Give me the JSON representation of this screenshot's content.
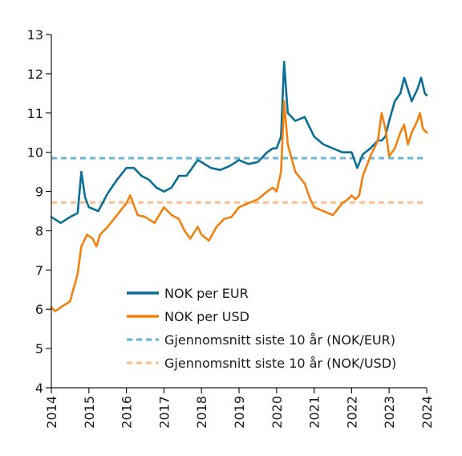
{
  "chart_data": {
    "type": "line",
    "title": "",
    "xlabel": "",
    "ylabel": "",
    "xlim": [
      2014,
      2024
    ],
    "ylim": [
      4,
      13
    ],
    "x_ticks": [
      "2014",
      "2015",
      "2016",
      "2017",
      "2018",
      "2019",
      "2020",
      "2021",
      "2022",
      "2023",
      "2024"
    ],
    "y_ticks": [
      "4",
      "5",
      "6",
      "7",
      "8",
      "9",
      "10",
      "11",
      "12",
      "13"
    ],
    "grid": false,
    "legend_position": "bottom-center",
    "series": [
      {
        "name": "NOK per EUR",
        "color": "#0a6e97",
        "style": "solid",
        "points": [
          [
            2014.0,
            8.35
          ],
          [
            2014.25,
            8.2
          ],
          [
            2014.5,
            8.35
          ],
          [
            2014.7,
            8.45
          ],
          [
            2014.8,
            9.5
          ],
          [
            2014.9,
            8.85
          ],
          [
            2015.0,
            8.6
          ],
          [
            2015.25,
            8.5
          ],
          [
            2015.5,
            8.95
          ],
          [
            2015.75,
            9.3
          ],
          [
            2016.0,
            9.6
          ],
          [
            2016.2,
            9.6
          ],
          [
            2016.4,
            9.4
          ],
          [
            2016.6,
            9.3
          ],
          [
            2016.8,
            9.1
          ],
          [
            2017.0,
            9.0
          ],
          [
            2017.2,
            9.1
          ],
          [
            2017.4,
            9.4
          ],
          [
            2017.6,
            9.4
          ],
          [
            2017.75,
            9.6
          ],
          [
            2017.9,
            9.8
          ],
          [
            2018.0,
            9.75
          ],
          [
            2018.25,
            9.6
          ],
          [
            2018.5,
            9.55
          ],
          [
            2018.75,
            9.65
          ],
          [
            2019.0,
            9.8
          ],
          [
            2019.25,
            9.7
          ],
          [
            2019.5,
            9.75
          ],
          [
            2019.75,
            10.0
          ],
          [
            2019.9,
            10.1
          ],
          [
            2020.0,
            10.1
          ],
          [
            2020.12,
            10.4
          ],
          [
            2020.2,
            12.3
          ],
          [
            2020.3,
            11.0
          ],
          [
            2020.5,
            10.8
          ],
          [
            2020.75,
            10.9
          ],
          [
            2020.9,
            10.6
          ],
          [
            2021.0,
            10.4
          ],
          [
            2021.25,
            10.2
          ],
          [
            2021.5,
            10.1
          ],
          [
            2021.75,
            10.0
          ],
          [
            2021.9,
            10.0
          ],
          [
            2022.0,
            10.0
          ],
          [
            2022.15,
            9.6
          ],
          [
            2022.3,
            9.95
          ],
          [
            2022.5,
            10.1
          ],
          [
            2022.7,
            10.3
          ],
          [
            2022.8,
            10.3
          ],
          [
            2022.9,
            10.4
          ],
          [
            2023.0,
            10.8
          ],
          [
            2023.15,
            11.3
          ],
          [
            2023.3,
            11.5
          ],
          [
            2023.4,
            11.9
          ],
          [
            2023.5,
            11.6
          ],
          [
            2023.6,
            11.3
          ],
          [
            2023.75,
            11.6
          ],
          [
            2023.85,
            11.9
          ],
          [
            2023.95,
            11.5
          ],
          [
            2024.0,
            11.45
          ]
        ]
      },
      {
        "name": "NOK per USD",
        "color": "#f08110",
        "style": "solid",
        "points": [
          [
            2014.0,
            6.05
          ],
          [
            2014.1,
            5.95
          ],
          [
            2014.25,
            6.05
          ],
          [
            2014.5,
            6.2
          ],
          [
            2014.7,
            6.9
          ],
          [
            2014.8,
            7.6
          ],
          [
            2014.95,
            7.9
          ],
          [
            2015.1,
            7.8
          ],
          [
            2015.2,
            7.6
          ],
          [
            2015.3,
            7.9
          ],
          [
            2015.5,
            8.1
          ],
          [
            2015.75,
            8.4
          ],
          [
            2016.0,
            8.7
          ],
          [
            2016.1,
            8.9
          ],
          [
            2016.3,
            8.4
          ],
          [
            2016.5,
            8.35
          ],
          [
            2016.75,
            8.2
          ],
          [
            2017.0,
            8.6
          ],
          [
            2017.2,
            8.4
          ],
          [
            2017.4,
            8.3
          ],
          [
            2017.55,
            8.0
          ],
          [
            2017.7,
            7.8
          ],
          [
            2017.9,
            8.1
          ],
          [
            2018.0,
            7.9
          ],
          [
            2018.2,
            7.75
          ],
          [
            2018.4,
            8.1
          ],
          [
            2018.6,
            8.3
          ],
          [
            2018.8,
            8.35
          ],
          [
            2019.0,
            8.6
          ],
          [
            2019.25,
            8.7
          ],
          [
            2019.5,
            8.8
          ],
          [
            2019.75,
            9.0
          ],
          [
            2019.9,
            9.1
          ],
          [
            2020.0,
            9.0
          ],
          [
            2020.12,
            9.5
          ],
          [
            2020.2,
            11.3
          ],
          [
            2020.3,
            10.2
          ],
          [
            2020.5,
            9.5
          ],
          [
            2020.75,
            9.2
          ],
          [
            2020.9,
            8.8
          ],
          [
            2021.0,
            8.6
          ],
          [
            2021.25,
            8.5
          ],
          [
            2021.5,
            8.4
          ],
          [
            2021.75,
            8.7
          ],
          [
            2021.9,
            8.8
          ],
          [
            2022.0,
            8.9
          ],
          [
            2022.1,
            8.8
          ],
          [
            2022.2,
            8.9
          ],
          [
            2022.3,
            9.4
          ],
          [
            2022.5,
            9.9
          ],
          [
            2022.7,
            10.3
          ],
          [
            2022.8,
            11.0
          ],
          [
            2022.9,
            10.6
          ],
          [
            2023.0,
            9.9
          ],
          [
            2023.15,
            10.1
          ],
          [
            2023.3,
            10.5
          ],
          [
            2023.4,
            10.7
          ],
          [
            2023.5,
            10.2
          ],
          [
            2023.6,
            10.5
          ],
          [
            2023.75,
            10.8
          ],
          [
            2023.82,
            11.0
          ],
          [
            2023.9,
            10.6
          ],
          [
            2024.0,
            10.5
          ]
        ]
      },
      {
        "name": "Gjennomsnitt siste 10 år (NOK/EUR)",
        "color": "#6ab5d6",
        "style": "dashed",
        "points": [
          [
            2014.0,
            9.85
          ],
          [
            2024.0,
            9.85
          ]
        ]
      },
      {
        "name": "Gjennomsnitt siste 10 år (NOK/USD)",
        "color": "#f8bf92",
        "style": "dashed",
        "points": [
          [
            2014.0,
            8.72
          ],
          [
            2024.0,
            8.72
          ]
        ]
      }
    ]
  }
}
